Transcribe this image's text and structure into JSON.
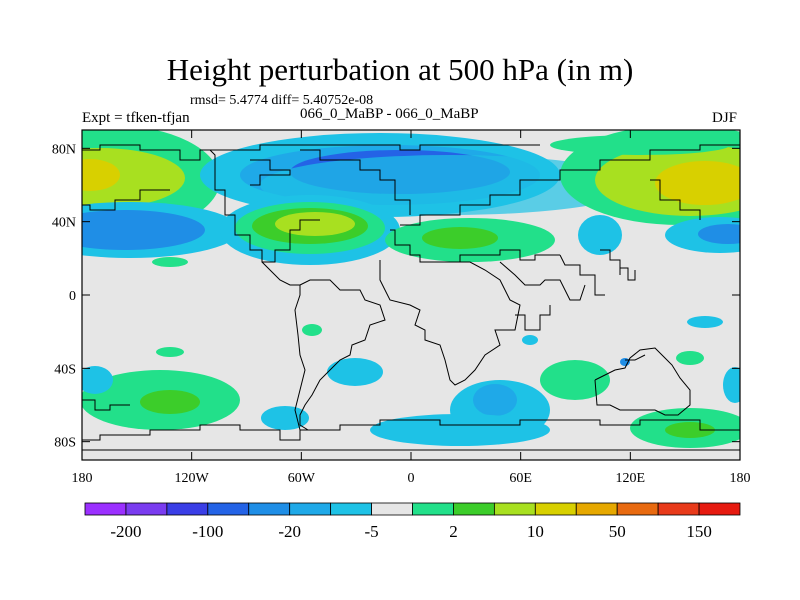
{
  "title": "Height perturbation at 500 hPa (in m)",
  "stats_text": "rmsd= 5.4774 diff= 5.40752e-08",
  "left_label": "Expt = tfken-tfjan",
  "center_label": "066_0_MaBP - 066_0_MaBP",
  "right_label": "DJF",
  "y_ticks": [
    "80N",
    "40N",
    "0",
    "40S",
    "80S"
  ],
  "x_ticks": [
    "180",
    "120W",
    "60W",
    "0",
    "60E",
    "120E",
    "180"
  ],
  "colorbar_labels": [
    "-200",
    "-100",
    "-20",
    "-5",
    "2",
    "10",
    "50",
    "150"
  ],
  "colorbar_colors": [
    "#9b30ff",
    "#7a3cf0",
    "#3a3ee6",
    "#2463e6",
    "#1f8ee6",
    "#1fa9e8",
    "#1ec2e6",
    "#e6e6e6",
    "#22e08a",
    "#3ccd2a",
    "#a8e020",
    "#d8d000",
    "#e6a800",
    "#e86a10",
    "#e83a1a",
    "#e61a10"
  ],
  "colors": {
    "background_field": "#e6e6e6",
    "coast": "#000000"
  }
}
